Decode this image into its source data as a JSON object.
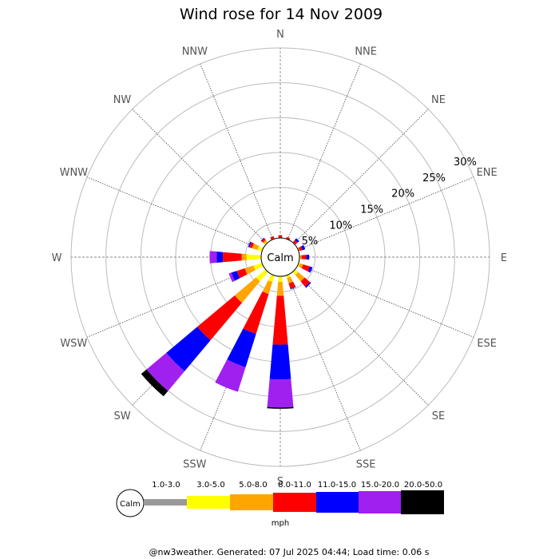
{
  "chart_data": {
    "type": "wind-rose",
    "title": "Wind rose for 14 Nov 2009",
    "directions": [
      "N",
      "NNE",
      "NE",
      "ENE",
      "E",
      "ESE",
      "SE",
      "SSE",
      "S",
      "SSW",
      "SW",
      "WSW",
      "W",
      "WNW",
      "NW",
      "NNW"
    ],
    "radial_ticks": [
      5,
      10,
      15,
      20,
      25,
      30
    ],
    "radial_tick_labels": [
      "5%",
      "10%",
      "15%",
      "20%",
      "25%",
      "30%"
    ],
    "rmax": 30,
    "calm_label": "Calm",
    "unit": "mph",
    "speed_bins": [
      {
        "label": "1.0-3.0",
        "color": "#999999"
      },
      {
        "label": "3.0-5.0",
        "color": "#ffff00"
      },
      {
        "label": "5.0-8.0",
        "color": "#ffa500"
      },
      {
        "label": "8.0-11.0",
        "color": "#ff0000"
      },
      {
        "label": "11.0-15.0",
        "color": "#0000ff"
      },
      {
        "label": "15.0-20.0",
        "color": "#a020f0"
      },
      {
        "label": "20.0-50.0",
        "color": "#000000"
      }
    ],
    "series": [
      {
        "direction": "N",
        "cumulative": [
          1.2,
          1.2,
          1.2,
          1.6
        ]
      },
      {
        "direction": "NNE",
        "cumulative": [
          1.2,
          1.2,
          1.2,
          1.5
        ]
      },
      {
        "direction": "NE",
        "cumulative": [
          1.2,
          1.2,
          1.3,
          1.7,
          2.0
        ]
      },
      {
        "direction": "ENE",
        "cumulative": [
          1.2,
          1.2,
          1.4,
          1.8,
          2.2
        ]
      },
      {
        "direction": "E",
        "cumulative": [
          1.2,
          1.2,
          1.5,
          2.2,
          2.6
        ]
      },
      {
        "direction": "ESE",
        "cumulative": [
          1.2,
          1.4,
          1.9,
          2.9,
          3.3
        ]
      },
      {
        "direction": "SE",
        "cumulative": [
          1.2,
          1.8,
          3.0,
          4.0,
          4.2
        ]
      },
      {
        "direction": "SSE",
        "cumulative": [
          1.2,
          1.6,
          2.4,
          3.2,
          3.3
        ]
      },
      {
        "direction": "S",
        "cumulative": [
          1.2,
          2.0,
          4.0,
          11.0,
          16.0,
          20.0,
          20.2
        ]
      },
      {
        "direction": "SSW",
        "cumulative": [
          1.2,
          2.2,
          4.0,
          10.0,
          15.0,
          18.7
        ]
      },
      {
        "direction": "SW",
        "cumulative": [
          1.2,
          3.0,
          7.0,
          14.0,
          19.8,
          23.5,
          24.5
        ]
      },
      {
        "direction": "WSW",
        "cumulative": [
          1.2,
          2.5,
          3.8,
          5.0,
          5.8,
          6.2
        ]
      },
      {
        "direction": "W",
        "cumulative": [
          1.2,
          3.3,
          4.0,
          6.7,
          7.6,
          8.6
        ]
      },
      {
        "direction": "WNW",
        "cumulative": [
          1.2,
          1.9,
          2.7,
          3.1,
          3.3
        ]
      },
      {
        "direction": "NW",
        "cumulative": [
          1.2,
          1.4,
          1.7,
          2.0,
          2.1
        ]
      },
      {
        "direction": "NNW",
        "cumulative": [
          1.2,
          1.2,
          1.3,
          1.6
        ]
      }
    ]
  },
  "footer": "@nw3weather. Generated: 07 Jul 2025 04:44; Load time: 0.06 s"
}
